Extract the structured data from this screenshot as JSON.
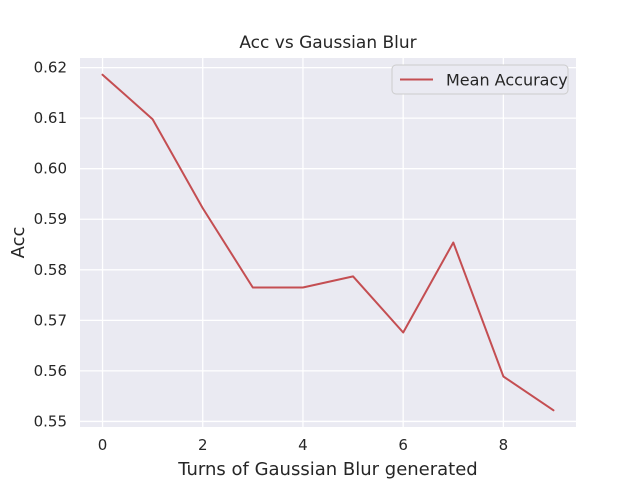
{
  "chart_data": {
    "type": "line",
    "title": "Acc vs Gaussian Blur",
    "xlabel": "Turns of Gaussian Blur generated",
    "ylabel": "Acc",
    "x": [
      0,
      1,
      2,
      3,
      4,
      5,
      6,
      7,
      8,
      9
    ],
    "series": [
      {
        "name": "Mean Accuracy",
        "color": "#c44e52",
        "values": [
          0.6186,
          0.6098,
          0.5922,
          0.5765,
          0.5765,
          0.5787,
          0.5676,
          0.5854,
          0.5589,
          0.5522
        ]
      }
    ],
    "xticks": [
      0,
      2,
      4,
      6,
      8
    ],
    "xtick_labels": [
      "0",
      "2",
      "4",
      "6",
      "8"
    ],
    "yticks": [
      0.55,
      0.56,
      0.57,
      0.58,
      0.59,
      0.6,
      0.61,
      0.62
    ],
    "ytick_labels": [
      "0.55",
      "0.56",
      "0.57",
      "0.58",
      "0.59",
      "0.60",
      "0.61",
      "0.62"
    ],
    "xlim": [
      -0.45,
      9.45
    ],
    "ylim": [
      0.5489,
      0.6219
    ],
    "grid": true,
    "legend_position": "top-right",
    "plot_background": "#eaeaf2",
    "grid_color": "#ffffff"
  }
}
